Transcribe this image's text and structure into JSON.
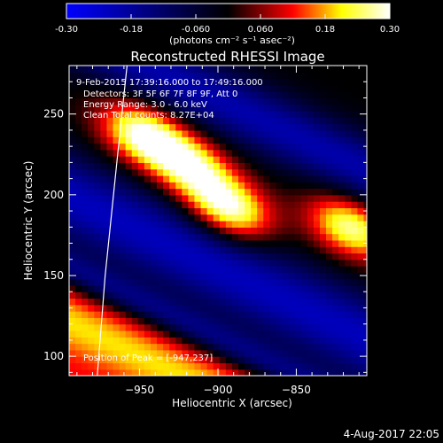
{
  "chart_data": {
    "type": "heatmap",
    "title": "Reconstructed RHESSI Image",
    "xlabel": "Heliocentric X (arcsec)",
    "ylabel": "Heliocentric Y (arcsec)",
    "xlim": [
      -995,
      -805
    ],
    "ylim": [
      88,
      280
    ],
    "x_ticks": [
      -950,
      -900,
      -850
    ],
    "y_ticks": [
      100,
      150,
      200,
      250
    ],
    "colorbar": {
      "label": "(photons cm⁻² s⁻¹ asec⁻²)",
      "range": [
        -0.3,
        0.3
      ],
      "ticks": [
        {
          "value": -0.3,
          "label": "-0.30"
        },
        {
          "value": -0.18,
          "label": "-0.18"
        },
        {
          "value": -0.06,
          "label": "-0.060"
        },
        {
          "value": 0.06,
          "label": "0.060"
        },
        {
          "value": 0.18,
          "label": "0.18"
        },
        {
          "value": 0.3,
          "label": "0.30"
        }
      ]
    },
    "annotations": [
      "9-Feb-2015 17:39:16.000 to 17:49:16.000",
      "Detectors: 3F 5F 6F 7F 8F 9F, Att 0",
      "Energy Range: 3.0 - 6.0 keV",
      "Clean    Total counts: 8.27E+04"
    ],
    "peak_label": "Position of Peak = [-947,237]",
    "peak": [
      -947,
      237
    ],
    "sources": [
      {
        "x": -947,
        "y": 237,
        "peak": 0.3
      },
      {
        "x": -918,
        "y": 218,
        "peak": 0.26
      },
      {
        "x": -893,
        "y": 192,
        "peak": 0.3
      },
      {
        "x": -815,
        "y": 180,
        "peak": 0.27
      }
    ],
    "limb": [
      [
        -958,
        280
      ],
      [
        -964,
        225
      ],
      [
        -972,
        150
      ],
      [
        -977,
        88
      ]
    ],
    "timestamp": "4-Aug-2017 22:05",
    "colors": {
      "colormap": [
        "#0000ff",
        "#000000",
        "#ff0000",
        "#ffff00",
        "#ffffff"
      ],
      "limb": "#ffffff"
    }
  }
}
